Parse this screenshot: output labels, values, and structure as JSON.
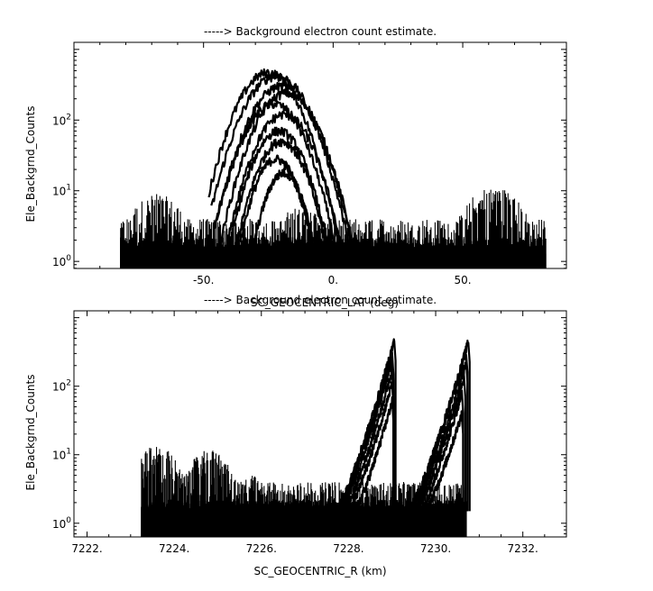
{
  "chart_data": [
    {
      "type": "line",
      "title": "-----> Background electron count estimate.",
      "xlabel": "SC_GEOCENTRIC_LAT (deg)",
      "ylabel": "Ele_Backgrnd_Counts",
      "xlim": [
        -100,
        90
      ],
      "ylim_log10": [
        -0.1,
        3.1
      ],
      "yscale": "log",
      "x_ticks": [
        {
          "value": -50,
          "label": "-50."
        },
        {
          "value": 0,
          "label": "0."
        },
        {
          "value": 50,
          "label": "50."
        }
      ],
      "y_ticks": [
        {
          "value": 1,
          "label": "10",
          "exp": "0"
        },
        {
          "value": 10,
          "label": "10",
          "exp": "1"
        },
        {
          "value": 100,
          "label": "10",
          "exp": "2"
        }
      ],
      "noise_range": [
        -82,
        82
      ],
      "noise_peaks": [
        {
          "x": -68,
          "peak": 9
        },
        {
          "x": -12,
          "peak": 6
        },
        {
          "x": 62,
          "peak": 12
        }
      ],
      "series": [
        {
          "center": -25,
          "width": 26,
          "peak": 470,
          "min_x": -48,
          "max_x": 8
        },
        {
          "center": -22,
          "width": 27,
          "peak": 420,
          "min_x": -47,
          "max_x": 9
        },
        {
          "center": -20,
          "width": 27,
          "peak": 300,
          "min_x": -46,
          "max_x": 10
        },
        {
          "center": -18,
          "width": 26,
          "peak": 240,
          "min_x": -45,
          "max_x": 10
        },
        {
          "center": -23,
          "width": 25,
          "peak": 170,
          "min_x": -45,
          "max_x": 7
        },
        {
          "center": -19,
          "width": 24,
          "peak": 120,
          "min_x": -42,
          "max_x": 6
        },
        {
          "center": -21,
          "width": 22,
          "peak": 70,
          "min_x": -42,
          "max_x": 4
        },
        {
          "center": -20,
          "width": 21,
          "peak": 50,
          "min_x": -38,
          "max_x": 2
        },
        {
          "center": -22,
          "width": 19,
          "peak": 28,
          "min_x": -36,
          "max_x": 0
        },
        {
          "center": -19,
          "width": 17,
          "peak": 18,
          "min_x": -34,
          "max_x": -2
        }
      ]
    },
    {
      "type": "line",
      "title": "-----> Background electron count estimate.",
      "xlabel": "SC_GEOCENTRIC_R (km)",
      "ylabel": "Ele_Backgrnd_Counts",
      "xlim": [
        7221.7,
        7233.0
      ],
      "ylim_log10": [
        -0.2,
        3.1
      ],
      "yscale": "log",
      "x_ticks": [
        {
          "value": 7222,
          "label": "7222."
        },
        {
          "value": 7224,
          "label": "7224."
        },
        {
          "value": 7226,
          "label": "7226."
        },
        {
          "value": 7228,
          "label": "7228."
        },
        {
          "value": 7230,
          "label": "7230."
        },
        {
          "value": 7232,
          "label": "7232."
        }
      ],
      "y_ticks": [
        {
          "value": 1,
          "label": "10",
          "exp": "0"
        },
        {
          "value": 10,
          "label": "10",
          "exp": "1"
        },
        {
          "value": 100,
          "label": "10",
          "exp": "2"
        }
      ],
      "noise_range": [
        7223.25,
        7230.7
      ],
      "noise_peaks": [
        {
          "x": 7223.6,
          "peak": 14
        },
        {
          "x": 7224.8,
          "peak": 12
        },
        {
          "x": 7225.8,
          "peak": 5
        }
      ],
      "series": [
        {
          "start": 7227.55,
          "end": 7229.05,
          "peak": 470
        },
        {
          "start": 7227.6,
          "end": 7229.0,
          "peak": 300
        },
        {
          "start": 7227.65,
          "end": 7229.0,
          "peak": 240
        },
        {
          "start": 7227.75,
          "end": 7229.0,
          "peak": 170
        },
        {
          "start": 7227.85,
          "end": 7229.0,
          "peak": 110
        },
        {
          "start": 7228.0,
          "end": 7229.0,
          "peak": 60
        },
        {
          "start": 7229.2,
          "end": 7230.75,
          "peak": 450
        },
        {
          "start": 7229.25,
          "end": 7230.7,
          "peak": 320
        },
        {
          "start": 7229.3,
          "end": 7230.7,
          "peak": 220
        },
        {
          "start": 7229.4,
          "end": 7230.65,
          "peak": 140
        },
        {
          "start": 7229.5,
          "end": 7230.6,
          "peak": 80
        },
        {
          "start": 7229.6,
          "end": 7230.6,
          "peak": 40
        }
      ]
    }
  ]
}
